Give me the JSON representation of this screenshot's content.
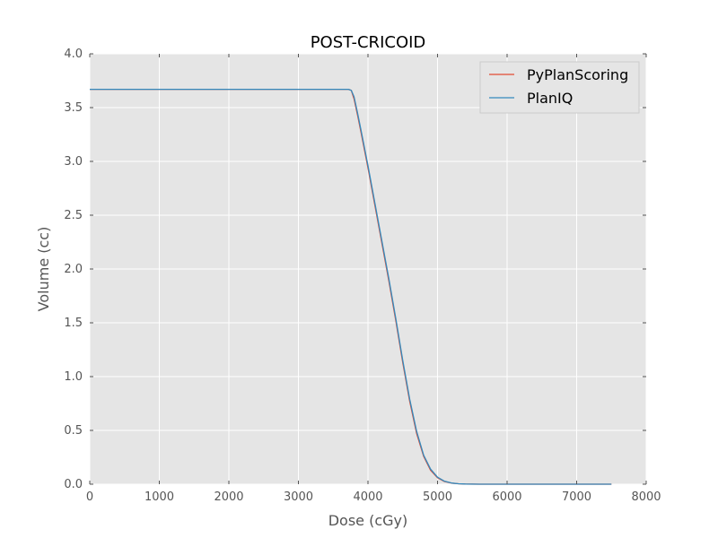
{
  "chart_data": {
    "type": "line",
    "title": "POST-CRICOID",
    "xlabel": "Dose (cGy)",
    "ylabel": "Volume (cc)",
    "xlim": [
      0,
      8000
    ],
    "ylim": [
      0,
      4.0
    ],
    "xticks": [
      0,
      1000,
      2000,
      3000,
      4000,
      5000,
      6000,
      7000,
      8000
    ],
    "xtick_labels": [
      "0",
      "1000",
      "2000",
      "3000",
      "4000",
      "5000",
      "6000",
      "7000",
      "8000"
    ],
    "yticks": [
      0,
      0.5,
      1.0,
      1.5,
      2.0,
      2.5,
      3.0,
      3.5,
      4.0
    ],
    "ytick_labels": [
      "0.0",
      "0.5",
      "1.0",
      "1.5",
      "2.0",
      "2.5",
      "3.0",
      "3.5",
      "4.0"
    ],
    "grid": true,
    "legend_position": "top-right",
    "background_color": "#e5e5e5",
    "series": [
      {
        "name": "PyPlanScoring",
        "color": "#e24a33",
        "x": [
          0,
          1000,
          2000,
          3000,
          3650,
          3720,
          3760,
          3800,
          3850,
          3900,
          4000,
          4100,
          4200,
          4300,
          4400,
          4500,
          4600,
          4700,
          4800,
          4900,
          5000,
          5100,
          5200,
          5300,
          5400,
          5600,
          6000,
          7000,
          7500
        ],
        "y": [
          3.67,
          3.67,
          3.67,
          3.67,
          3.67,
          3.67,
          3.66,
          3.58,
          3.43,
          3.27,
          2.94,
          2.59,
          2.24,
          1.89,
          1.52,
          1.13,
          0.77,
          0.47,
          0.26,
          0.13,
          0.06,
          0.025,
          0.01,
          0.004,
          0.0015,
          0.0,
          0.0,
          0.0,
          0.0
        ]
      },
      {
        "name": "PlanIQ",
        "color": "#348abd",
        "x": [
          0,
          1000,
          2000,
          3000,
          3650,
          3720,
          3760,
          3800,
          3850,
          3900,
          4000,
          4100,
          4200,
          4300,
          4400,
          4500,
          4600,
          4700,
          4800,
          4900,
          5000,
          5100,
          5200,
          5300,
          5400,
          5600,
          6000,
          7000,
          7500
        ],
        "y": [
          3.67,
          3.67,
          3.67,
          3.67,
          3.67,
          3.67,
          3.66,
          3.6,
          3.45,
          3.29,
          2.96,
          2.61,
          2.26,
          1.91,
          1.54,
          1.15,
          0.79,
          0.49,
          0.27,
          0.14,
          0.065,
          0.028,
          0.011,
          0.004,
          0.0015,
          0.0,
          0.0,
          0.0,
          0.0
        ]
      }
    ]
  }
}
